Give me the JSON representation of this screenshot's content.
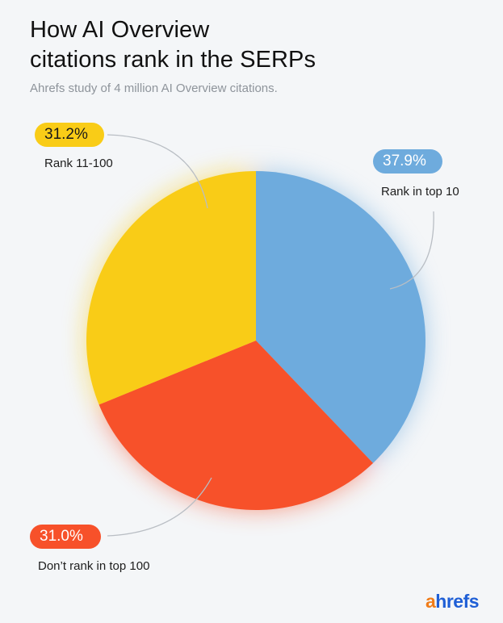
{
  "title_line1": "How AI Overview",
  "title_line2": "citations rank in the SERPs",
  "subtitle": "Ahrefs study of 4 million AI Overview citations.",
  "logo": {
    "first": "a",
    "rest": "hrefs"
  },
  "chart_data": {
    "type": "pie",
    "title": "How AI Overview citations rank in the SERPs",
    "subtitle": "Ahrefs study of 4 million AI Overview citations.",
    "start_angle_deg": 0,
    "direction": "clockwise",
    "slices": [
      {
        "label": "Rank in top 10",
        "value": 37.9,
        "value_label": "37.9%",
        "color": "#6eabdd"
      },
      {
        "label": "Don’t rank in top 100",
        "value": 31.0,
        "value_label": "31.0%",
        "color": "#f7512a"
      },
      {
        "label": "Rank 11-100",
        "value": 31.2,
        "value_label": "31.2%",
        "color": "#f9cc17"
      }
    ]
  }
}
